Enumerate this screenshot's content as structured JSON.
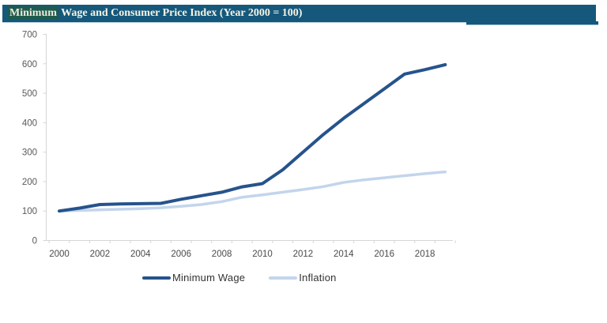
{
  "title_bar": {
    "highlighted_text": "Minimum",
    "rest_text": " Wage and Consumer Price Index (Year 2000 = 100)",
    "bar_color": "#15587C",
    "highlight_color": "#1E5B4F",
    "text_color": "#F7F3E6"
  },
  "legend": {
    "items": [
      {
        "label": "Minimum Wage",
        "color": "#26538C"
      },
      {
        "label": "Inflation",
        "color": "#C3D5EC"
      }
    ]
  },
  "chart_data": {
    "type": "line",
    "title": "Minimum Wage and Consumer Price Index (Year 2000 = 100)",
    "x": [
      2000,
      2001,
      2002,
      2003,
      2004,
      2005,
      2006,
      2007,
      2008,
      2009,
      2010,
      2011,
      2012,
      2013,
      2014,
      2015,
      2016,
      2017,
      2018,
      2019
    ],
    "series": [
      {
        "name": "Minimum Wage",
        "color": "#26538C",
        "values": [
          100,
          110,
          122,
          124,
          125,
          126,
          140,
          152,
          164,
          182,
          193,
          240,
          300,
          360,
          415,
          465,
          515,
          565,
          580,
          597
        ]
      },
      {
        "name": "Inflation",
        "color": "#C3D5EC",
        "values": [
          100,
          102,
          104,
          106,
          108,
          111,
          116,
          122,
          132,
          147,
          155,
          164,
          173,
          183,
          197,
          206,
          213,
          220,
          227,
          233
        ]
      }
    ],
    "xticks": [
      2000,
      2002,
      2004,
      2006,
      2008,
      2010,
      2012,
      2014,
      2016,
      2018
    ],
    "yticks": [
      0,
      100,
      200,
      300,
      400,
      500,
      600,
      700
    ],
    "ylim": [
      0,
      700
    ],
    "xlabel": "",
    "ylabel": "",
    "grid": false,
    "legend_position": "bottom",
    "axis_color": "#D6D6D6",
    "tick_label_color": "#595959"
  }
}
